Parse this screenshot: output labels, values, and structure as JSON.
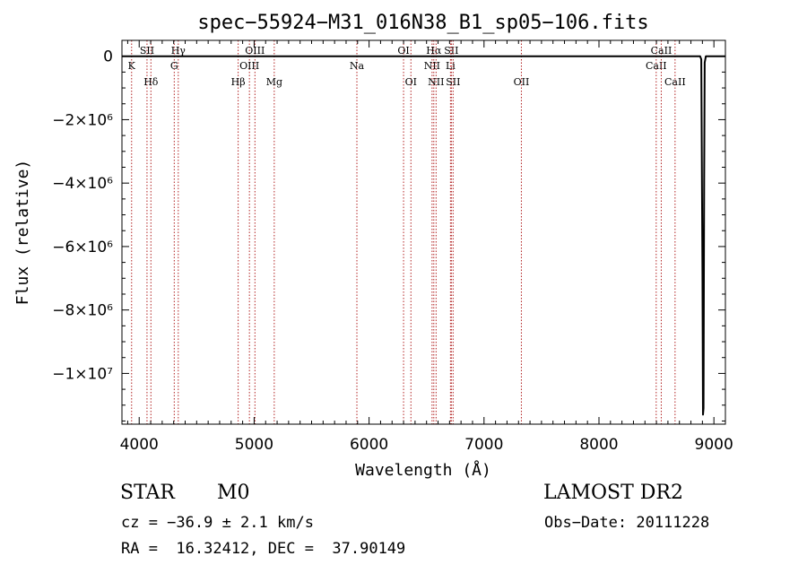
{
  "chart_data": {
    "type": "line",
    "title": "spec−55924−M31_016N38_B1_sp05−106.fits",
    "xlabel": "Wavelength (Å)",
    "ylabel": "Flux (relative)",
    "xlim": [
      3850,
      9100
    ],
    "ylim": [
      -11600000,
      500000
    ],
    "x_ticks": [
      {
        "value": 4000,
        "label": "4000"
      },
      {
        "value": 5000,
        "label": "5000"
      },
      {
        "value": 6000,
        "label": "6000"
      },
      {
        "value": 7000,
        "label": "7000"
      },
      {
        "value": 8000,
        "label": "8000"
      },
      {
        "value": 9000,
        "label": "9000"
      }
    ],
    "y_ticks": [
      {
        "value": 0,
        "label": "0"
      },
      {
        "value": -2000000,
        "label": "−2×10⁶"
      },
      {
        "value": -4000000,
        "label": "−4×10⁶"
      },
      {
        "value": -6000000,
        "label": "−6×10⁶"
      },
      {
        "value": -8000000,
        "label": "−8×10⁶"
      },
      {
        "value": -10000000,
        "label": "−1×10⁷"
      }
    ],
    "series": [
      {
        "x": [
          3850,
          4500,
          5500,
          6500,
          7500,
          8500,
          8880,
          8890,
          8900,
          8905,
          8910,
          8915,
          8920,
          8930,
          8940,
          9100
        ],
        "y": [
          0,
          0,
          0,
          0,
          0,
          0,
          0,
          -100000,
          -6800000,
          -11300000,
          -11100000,
          -4000000,
          -200000,
          0,
          0,
          0
        ]
      }
    ],
    "lines": [
      {
        "label": "K",
        "x": 3934,
        "row": 1
      },
      {
        "label": "SII",
        "x": 4068,
        "row": 0
      },
      {
        "label": "Hδ",
        "x": 4102,
        "row": 2
      },
      {
        "label": "Hγ",
        "x": 4340,
        "row": 0
      },
      {
        "label": "G",
        "x": 4305,
        "row": 1
      },
      {
        "label": "Hβ",
        "x": 4861,
        "row": 2
      },
      {
        "label": "OIII",
        "x": 4959,
        "row": 1
      },
      {
        "label": "OIII",
        "x": 5007,
        "row": 0
      },
      {
        "label": "Mg",
        "x": 5175,
        "row": 2
      },
      {
        "label": "Na",
        "x": 5894,
        "row": 1
      },
      {
        "label": "OI",
        "x": 6300,
        "row": 0
      },
      {
        "label": "OI",
        "x": 6364,
        "row": 2
      },
      {
        "label": "NII",
        "x": 6548,
        "row": 1
      },
      {
        "label": "Hα",
        "x": 6563,
        "row": 0
      },
      {
        "label": "NII",
        "x": 6583,
        "row": 2
      },
      {
        "label": "Li",
        "x": 6708,
        "row": 1
      },
      {
        "label": "SII",
        "x": 6716,
        "row": 0
      },
      {
        "label": "SII",
        "x": 6731,
        "row": 2
      },
      {
        "label": "OII",
        "x": 7325,
        "row": 2
      },
      {
        "label": "CaII",
        "x": 8498,
        "row": 1
      },
      {
        "label": "CaII",
        "x": 8542,
        "row": 0
      },
      {
        "label": "CaII",
        "x": 8662,
        "row": 2
      }
    ],
    "grid": false,
    "line_color": "#000000",
    "marker_color": "#b22222"
  },
  "info": {
    "class_label": "STAR",
    "subclass": "M0",
    "survey": "LAMOST DR2",
    "cz": "cz = −36.9 ± 2.1 km/s",
    "obs_date": "Obs−Date: 20111228",
    "coords": "RA =  16.32412, DEC =  37.90149"
  }
}
